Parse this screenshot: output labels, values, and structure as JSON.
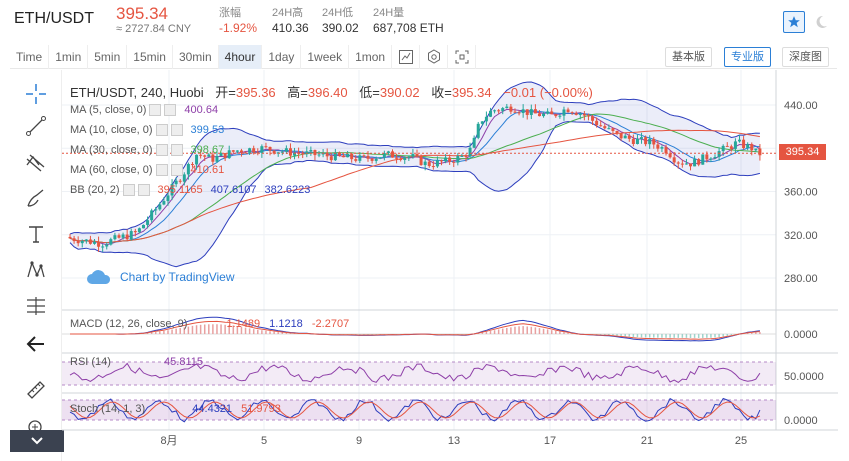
{
  "ticker": {
    "pair": "ETH/USDT",
    "price": "395.34",
    "cny": "≈ 2727.84 CNY",
    "change_label": "涨幅",
    "change_value": "-1.92%",
    "high_label": "24H高",
    "high_value": "410.36",
    "low_label": "24H低",
    "low_value": "390.02",
    "vol_label": "24H量",
    "vol_value": "687,708 ETH"
  },
  "toolbar": {
    "timeframes": [
      "Time",
      "1min",
      "5min",
      "15min",
      "30min",
      "4hour",
      "1day",
      "1week",
      "1mon"
    ],
    "active": "4hour",
    "basic": "基本版",
    "pro": "专业版",
    "depth": "深度图"
  },
  "chart": {
    "symbol": "ETH/USDT, 240, Huobi",
    "open_label": "开=",
    "open": "395.36",
    "high_label": "高=",
    "high": "396.40",
    "low_label": "低=",
    "low": "390.02",
    "close_label": "收=",
    "close": "395.34",
    "change": "−0.01 (−0.00%)",
    "last_price_tag": "395.34",
    "watermark": "Chart by TradingView",
    "indicators": [
      {
        "label": "MA (5, close, 0)",
        "value": "400.64",
        "color": "#8e3fa8"
      },
      {
        "label": "MA (10, close, 0)",
        "value": "399.53",
        "color": "#2b7fd6"
      },
      {
        "label": "MA (30, close, 0)",
        "value": "398.67",
        "color": "#4caf50"
      },
      {
        "label": "MA (60, close, 0)",
        "value": "410.61",
        "color": "#e55541"
      },
      {
        "label": "BB (20, 2)",
        "value": "395.1165  407.6107  382.6223",
        "color": "#2d3ebd"
      }
    ],
    "bb_values": [
      "395.1165",
      "407.6107",
      "382.6223"
    ],
    "price_axis": [
      "440.00",
      "400.00",
      "360.00",
      "320.00",
      "280.00"
    ],
    "macd": {
      "label": "MACD (12, 26, close, 9)",
      "v1": "1.1489",
      "v2": "1.1218",
      "v3": "-2.2707",
      "axis": "0.0000"
    },
    "rsi": {
      "label": "RSI (14)",
      "v1": "45.8115",
      "axis": "50.0000"
    },
    "stoch": {
      "label": "Stoch (14, 1, 3)",
      "v1": "44.4321",
      "v2": "51.9793",
      "axis": "0.0000"
    },
    "x_axis": [
      "8月",
      "5",
      "9",
      "13",
      "17",
      "21",
      "25"
    ]
  },
  "colors": {
    "up": "#26a69a",
    "down": "#e55541",
    "accent": "#2b7fd6"
  }
}
